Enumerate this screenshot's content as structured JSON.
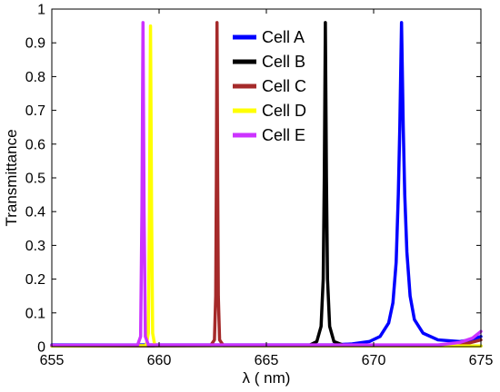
{
  "chart_data": {
    "type": "line",
    "title": "",
    "xlabel": "λ ( nm)",
    "ylabel": "Transmittance",
    "xlim": [
      655,
      675
    ],
    "ylim": [
      0,
      1
    ],
    "x_ticks": [
      655,
      660,
      665,
      670,
      675
    ],
    "y_ticks": [
      0,
      0.1,
      0.2,
      0.3,
      0.4,
      0.5,
      0.6,
      0.7,
      0.8,
      0.9,
      1
    ],
    "grid": false,
    "legend_position": "top-center",
    "series": [
      {
        "name": "Cell A",
        "color": "#0000ff",
        "peak_x": 671.3,
        "peak_y": 0.96,
        "points": [
          [
            655,
            0.005
          ],
          [
            668,
            0.005
          ],
          [
            669,
            0.008
          ],
          [
            669.8,
            0.015
          ],
          [
            670.3,
            0.03
          ],
          [
            670.7,
            0.07
          ],
          [
            670.9,
            0.13
          ],
          [
            671.05,
            0.25
          ],
          [
            671.15,
            0.45
          ],
          [
            671.22,
            0.65
          ],
          [
            671.3,
            0.96
          ],
          [
            671.38,
            0.65
          ],
          [
            671.45,
            0.45
          ],
          [
            671.55,
            0.28
          ],
          [
            671.7,
            0.15
          ],
          [
            671.9,
            0.08
          ],
          [
            672.3,
            0.04
          ],
          [
            673,
            0.02
          ],
          [
            674,
            0.015
          ],
          [
            674.5,
            0.02
          ],
          [
            675,
            0.03
          ]
        ]
      },
      {
        "name": "Cell B",
        "color": "#000000",
        "peak_x": 667.75,
        "peak_y": 0.96,
        "points": [
          [
            655,
            0.002
          ],
          [
            667,
            0.004
          ],
          [
            667.35,
            0.015
          ],
          [
            667.55,
            0.06
          ],
          [
            667.65,
            0.2
          ],
          [
            667.7,
            0.5
          ],
          [
            667.75,
            0.96
          ],
          [
            667.8,
            0.5
          ],
          [
            667.85,
            0.2
          ],
          [
            667.95,
            0.06
          ],
          [
            668.15,
            0.015
          ],
          [
            668.6,
            0.004
          ],
          [
            675,
            0.002
          ]
        ]
      },
      {
        "name": "Cell C",
        "color": "#a52a2a",
        "peak_x": 662.7,
        "peak_y": 0.96,
        "points": [
          [
            655,
            0.002
          ],
          [
            662.4,
            0.003
          ],
          [
            662.58,
            0.02
          ],
          [
            662.64,
            0.15
          ],
          [
            662.67,
            0.5
          ],
          [
            662.7,
            0.96
          ],
          [
            662.73,
            0.5
          ],
          [
            662.76,
            0.15
          ],
          [
            662.82,
            0.02
          ],
          [
            663,
            0.003
          ],
          [
            673.5,
            0.003
          ],
          [
            674.2,
            0.007
          ],
          [
            674.7,
            0.015
          ],
          [
            675,
            0.02
          ]
        ]
      },
      {
        "name": "Cell D",
        "color": "#ffff00",
        "peak_x": 659.6,
        "peak_y": 0.95,
        "points": [
          [
            655,
            0.002
          ],
          [
            659.4,
            0.003
          ],
          [
            659.5,
            0.04
          ],
          [
            659.55,
            0.4
          ],
          [
            659.6,
            0.95
          ],
          [
            659.65,
            0.4
          ],
          [
            659.7,
            0.04
          ],
          [
            659.8,
            0.003
          ],
          [
            675,
            0.002
          ]
        ]
      },
      {
        "name": "Cell E",
        "color": "#cc33ff",
        "peak_x": 659.25,
        "peak_y": 0.96,
        "points": [
          [
            655,
            0.004
          ],
          [
            659,
            0.005
          ],
          [
            659.14,
            0.03
          ],
          [
            659.2,
            0.4
          ],
          [
            659.25,
            0.96
          ],
          [
            659.3,
            0.4
          ],
          [
            659.36,
            0.03
          ],
          [
            659.5,
            0.005
          ],
          [
            673,
            0.005
          ],
          [
            674,
            0.012
          ],
          [
            674.6,
            0.025
          ],
          [
            675,
            0.045
          ]
        ]
      }
    ]
  }
}
